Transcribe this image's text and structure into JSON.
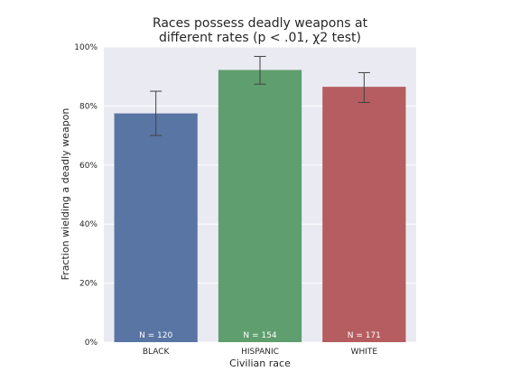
{
  "chart_data": {
    "type": "bar",
    "title_lines": [
      "Races possess deadly weapons at",
      "different rates (p < .01, χ2 test)"
    ],
    "xlabel": "Civilian race",
    "ylabel": "Fraction wielding a deadly weapon",
    "categories": [
      "BLACK",
      "HISPANIC",
      "WHITE"
    ],
    "values": [
      0.775,
      0.922,
      0.865
    ],
    "error_low": [
      0.7,
      0.874,
      0.812
    ],
    "error_high": [
      0.85,
      0.968,
      0.913
    ],
    "annotations": [
      "N = 120",
      "N = 154",
      "N = 171"
    ],
    "ylim": [
      0,
      1.0
    ],
    "yticks": [
      0,
      0.2,
      0.4,
      0.6,
      0.8,
      1.0
    ],
    "ytick_labels": [
      "0%",
      "20%",
      "40%",
      "60%",
      "80%",
      "100%"
    ],
    "colors": [
      "#5975a4",
      "#5f9e6e",
      "#b55d60"
    ],
    "background": "#eaeaf2",
    "grid": true
  }
}
